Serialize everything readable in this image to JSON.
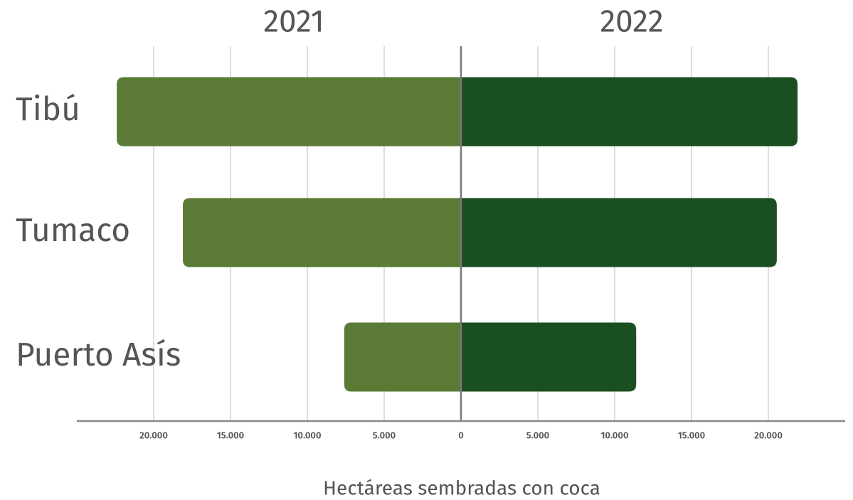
{
  "chart_data": {
    "type": "butterfly",
    "categories": [
      "Tibú",
      "Tumaco",
      "Puerto Asís"
    ],
    "series": [
      {
        "name": "2021",
        "color": "#5a7a36",
        "values": [
          22400,
          18100,
          7600
        ]
      },
      {
        "name": "2022",
        "color": "#1a4f22",
        "values": [
          21900,
          20550,
          11400
        ]
      }
    ],
    "xlabel": "Hectáreas sembradas con coca",
    "xlim": [
      0,
      25000
    ],
    "xticks": [
      0,
      {
        "value": 5000,
        "label": "5.000"
      },
      {
        "value": 10000,
        "label": "10.000"
      },
      {
        "value": 15000,
        "label": "15.000"
      },
      {
        "value": 20000,
        "label": "20.000"
      }
    ],
    "grid": true
  }
}
